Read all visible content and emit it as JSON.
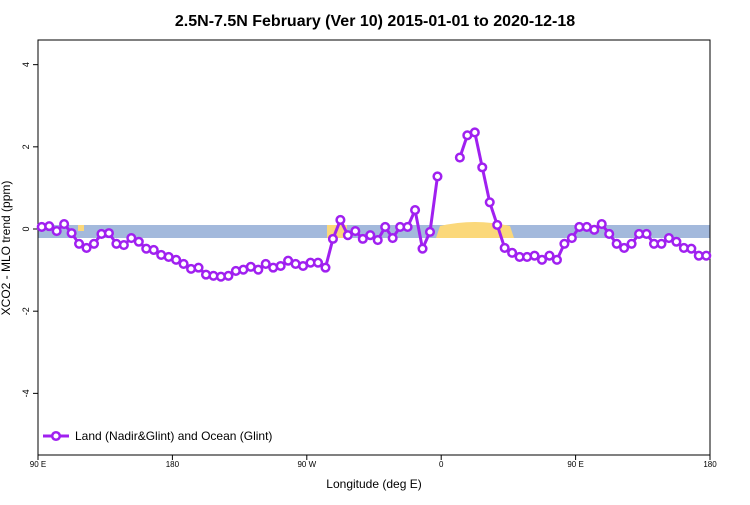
{
  "chart_data": {
    "type": "line",
    "title": "2.5N-7.5N February (Ver 10)   2015-01-01 to 2020-12-18",
    "x_label": "Longitude (deg E)",
    "y_label": "XCO2 - MLO trend (ppm)",
    "xlim": [
      90,
      540
    ],
    "ylim": [
      -5.5,
      4.6
    ],
    "xticks": [
      {
        "value": 90,
        "label": "90 E"
      },
      180,
      {
        "value": 270,
        "label": "90 W"
      },
      {
        "value": 360,
        "label": "0"
      },
      {
        "value": 450,
        "label": "90 E"
      },
      {
        "value": 540,
        "label": "180"
      }
    ],
    "yticks": [
      -4,
      -2,
      0,
      2,
      4
    ],
    "legend": "bottom-left",
    "x": [
      92.5,
      97.5,
      102.5,
      107.5,
      112.5,
      117.5,
      122.5,
      127.5,
      132.5,
      137.5,
      142.5,
      147.5,
      152.5,
      157.5,
      162.5,
      167.5,
      172.5,
      177.5,
      182.5,
      187.5,
      192.5,
      197.5,
      202.5,
      207.5,
      212.5,
      217.5,
      222.5,
      227.5,
      232.5,
      237.5,
      242.5,
      247.5,
      252.5,
      257.5,
      262.5,
      267.5,
      272.5,
      277.5,
      282.5,
      287.5,
      292.5,
      297.5,
      302.5,
      307.5,
      312.5,
      317.5,
      322.5,
      327.5,
      332.5,
      337.5,
      342.5,
      347.5,
      352.5,
      357.5,
      362.5,
      367.5,
      372.5,
      377.5,
      382.5,
      387.5,
      392.5,
      397.5,
      402.5,
      407.5,
      412.5,
      417.5,
      422.5,
      427.5,
      432.5,
      437.5,
      442.5,
      447.5,
      452.5,
      457.5,
      462.5,
      467.5,
      472.5,
      477.5,
      482.5,
      487.5,
      492.5,
      497.5,
      502.5,
      507.5,
      512.5,
      517.5,
      522.5,
      527.5,
      532.5,
      537.5
    ],
    "series": [
      {
        "name": "Land (Nadir&Glint) and Ocean (Glint)",
        "color": "#a020f0",
        "values": [
          0.05,
          0.07,
          -0.05,
          0.12,
          -0.1,
          -0.36,
          -0.46,
          -0.36,
          -0.12,
          -0.1,
          -0.36,
          -0.39,
          -0.22,
          -0.31,
          -0.48,
          -0.51,
          -0.63,
          -0.68,
          -0.75,
          -0.85,
          -0.97,
          -0.94,
          -1.11,
          -1.14,
          -1.16,
          -1.14,
          -1.02,
          -0.99,
          -0.92,
          -0.99,
          -0.85,
          -0.94,
          -0.9,
          -0.77,
          -0.85,
          -0.9,
          -0.82,
          -0.82,
          -0.94,
          -0.24,
          0.22,
          -0.15,
          -0.05,
          -0.24,
          -0.15,
          -0.27,
          0.05,
          -0.22,
          0.05,
          0.05,
          0.46,
          -0.48,
          -0.07,
          1.28,
          null,
          null,
          1.74,
          2.28,
          2.35,
          1.5,
          0.65,
          0.1,
          -0.46,
          -0.58,
          -0.68,
          -0.68,
          -0.65,
          -0.75,
          -0.65,
          -0.75,
          -0.36,
          -0.22,
          0.05,
          0.05,
          -0.02,
          0.12,
          -0.12,
          -0.36,
          -0.46,
          -0.36,
          -0.12,
          -0.12,
          -0.36,
          -0.36,
          -0.22,
          -0.31,
          -0.46,
          -0.48,
          -0.65,
          -0.65
        ]
      }
    ]
  }
}
